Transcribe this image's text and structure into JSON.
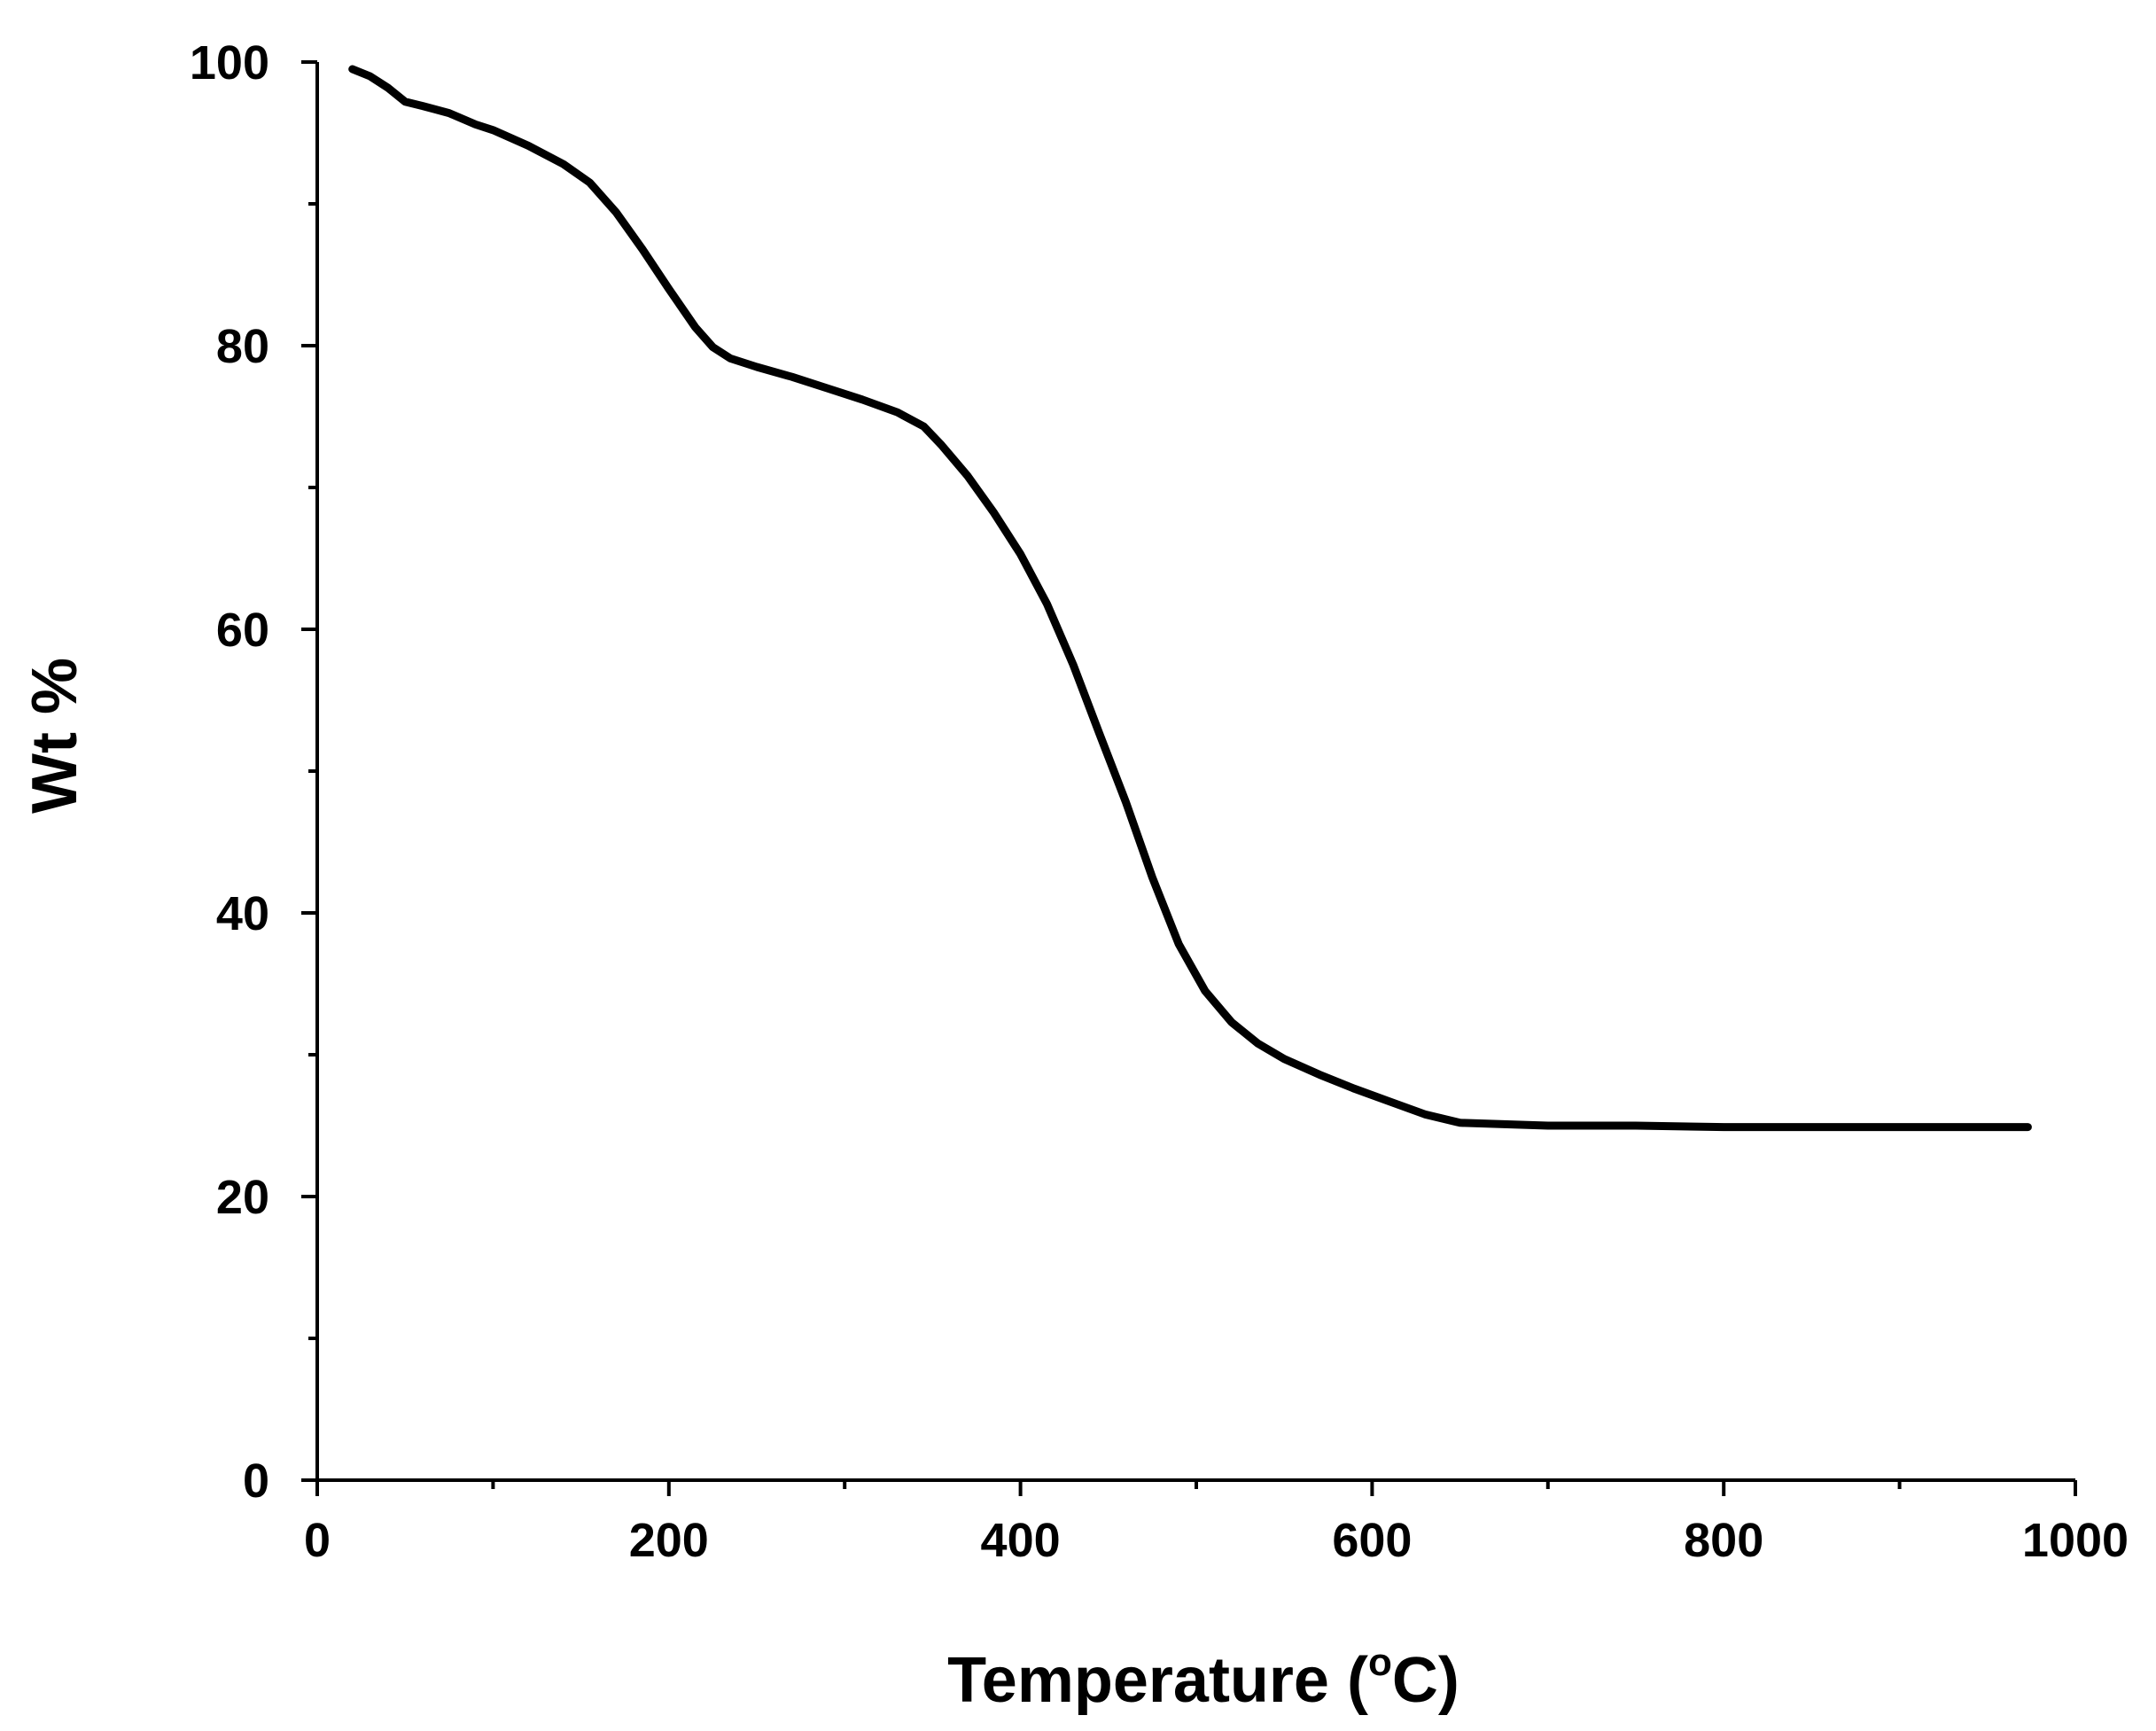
{
  "chart_data": {
    "type": "line",
    "title": "",
    "xlabel": "Temperature (",
    "xlabel_sup": "o",
    "xlabel_tail": "C)",
    "ylabel": "Wt %",
    "xlim": [
      0,
      1000
    ],
    "ylim": [
      0,
      100
    ],
    "x_ticks": [
      0,
      200,
      400,
      600,
      800,
      1000
    ],
    "x_tick_labels": [
      "0",
      "200",
      "400",
      "600",
      "800",
      "1000"
    ],
    "x_minor_ticks": [
      100,
      300,
      500,
      700,
      900
    ],
    "y_ticks": [
      0,
      20,
      40,
      60,
      80,
      100
    ],
    "y_tick_labels": [
      "0",
      "20",
      "40",
      "60",
      "80",
      "100"
    ],
    "y_minor_ticks": [
      10,
      30,
      50,
      70,
      90
    ],
    "grid": false,
    "legend": "none",
    "series": [
      {
        "color": "#000000",
        "x": [
          20,
          30,
          40,
          50,
          60,
          75,
          90,
          100,
          120,
          140,
          155,
          170,
          185,
          200,
          215,
          225,
          235,
          250,
          270,
          290,
          310,
          330,
          345,
          355,
          370,
          385,
          400,
          415,
          430,
          445,
          460,
          475,
          490,
          505,
          520,
          535,
          550,
          570,
          590,
          610,
          630,
          650,
          700,
          750,
          800,
          850,
          900,
          950,
          973
        ],
        "y": [
          99.5,
          99,
          98.2,
          97.2,
          96.9,
          96.4,
          95.6,
          95.2,
          94.1,
          92.8,
          91.5,
          89.4,
          86.8,
          84,
          81.3,
          79.9,
          79.1,
          78.5,
          77.8,
          77,
          76.2,
          75.3,
          74.3,
          73,
          70.8,
          68.2,
          65.3,
          61.8,
          57.5,
          52.6,
          47.8,
          42.5,
          37.8,
          34.5,
          32.3,
          30.8,
          29.7,
          28.6,
          27.6,
          26.7,
          25.8,
          25.2,
          25,
          25,
          24.9,
          24.9,
          24.9,
          24.9,
          24.9
        ]
      }
    ]
  }
}
